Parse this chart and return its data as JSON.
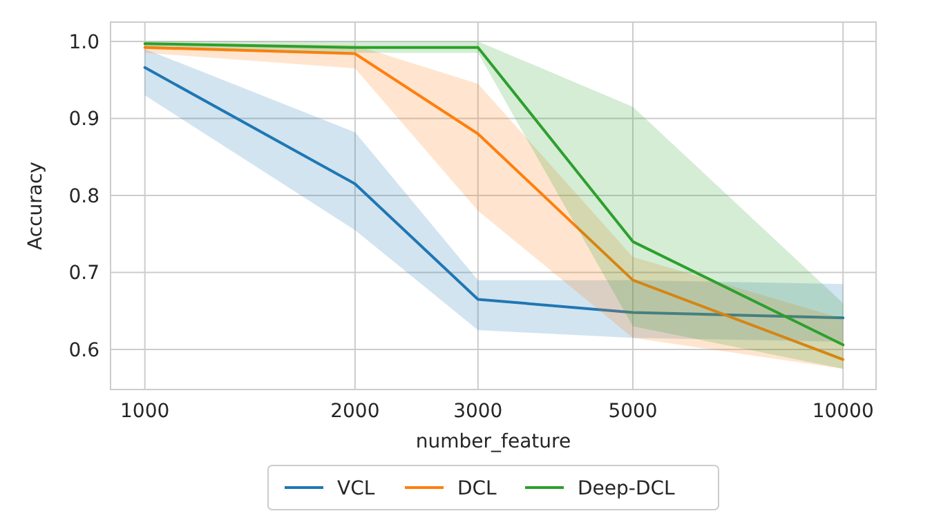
{
  "chart_data": {
    "type": "line",
    "xlabel": "number_feature",
    "ylabel": "Accuracy",
    "log": "x",
    "x": [
      1000,
      2000,
      3000,
      5000,
      10000
    ],
    "xlim": [
      893,
      11150
    ],
    "xticks": [
      1000,
      2000,
      3000,
      5000,
      10000
    ],
    "ylim": [
      0.548,
      1.025
    ],
    "yticks": [
      0.6,
      0.7,
      0.8,
      0.9,
      {
        "value": 1,
        "label": "1.0"
      }
    ],
    "grid": true,
    "legend": "bottom",
    "series": [
      {
        "name": "VCL",
        "color": "#1f77b4",
        "values": [
          0.966,
          0.815,
          0.665,
          0.648,
          0.641
        ],
        "lower": [
          0.93,
          0.755,
          0.625,
          0.615,
          0.61
        ],
        "upper": [
          0.99,
          0.882,
          0.69,
          0.69,
          0.685
        ]
      },
      {
        "name": "DCL",
        "color": "#ff7f0e",
        "values": [
          0.992,
          0.984,
          0.88,
          0.69,
          0.587
        ],
        "lower": [
          0.985,
          0.965,
          0.78,
          0.615,
          0.575
        ],
        "upper": [
          0.998,
          0.995,
          0.945,
          0.72,
          0.64
        ]
      },
      {
        "name": "Deep-DCL",
        "color": "#2ca02c",
        "values": [
          0.997,
          0.992,
          0.992,
          0.74,
          0.606
        ],
        "lower": [
          0.993,
          0.985,
          0.985,
          0.63,
          0.575
        ],
        "upper": [
          1.0,
          1.0,
          1.0,
          0.915,
          0.66
        ]
      }
    ]
  }
}
